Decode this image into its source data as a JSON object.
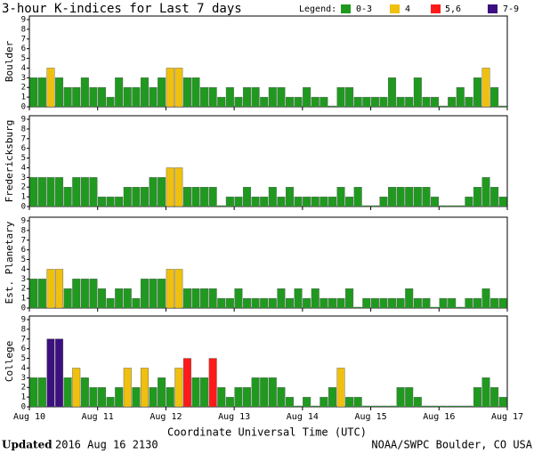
{
  "header": {
    "title": "3-hour K-indices for Last 7 days",
    "legend_title": "Legend:",
    "legend": [
      {
        "label": "0-3",
        "color": "#1f9a1f",
        "levels": [
          0,
          1,
          2,
          3
        ]
      },
      {
        "label": "4",
        "color": "#f0c010",
        "levels": [
          4
        ]
      },
      {
        "label": "5,6",
        "color": "#ff1a1a",
        "levels": [
          5,
          6
        ]
      },
      {
        "label": "7-9",
        "color": "#3c1080",
        "levels": [
          7,
          8,
          9
        ]
      }
    ]
  },
  "x_axis": {
    "label": "Coordinate Universal Time (UTC)",
    "xlim": [
      0,
      56
    ],
    "xticks": [
      {
        "value": 0,
        "label": "Aug 10"
      },
      {
        "value": 8,
        "label": "Aug 11"
      },
      {
        "value": 16,
        "label": "Aug 12"
      },
      {
        "value": 24,
        "label": "Aug 13"
      },
      {
        "value": 32,
        "label": "Aug 14"
      },
      {
        "value": 40,
        "label": "Aug 15"
      },
      {
        "value": 48,
        "label": "Aug 16"
      },
      {
        "value": 56,
        "label": "Aug 17"
      }
    ]
  },
  "chart_data": [
    {
      "type": "bar",
      "ylabel": "Boulder",
      "ylim": [
        0,
        9
      ],
      "yticks": [
        0,
        1,
        2,
        3,
        4,
        5,
        6,
        7,
        8,
        9
      ],
      "values": [
        3,
        3,
        4,
        3,
        2,
        2,
        3,
        2,
        2,
        1,
        3,
        2,
        2,
        3,
        2,
        3,
        4,
        4,
        3,
        3,
        2,
        2,
        1,
        2,
        1,
        2,
        2,
        1,
        2,
        2,
        1,
        1,
        2,
        1,
        1,
        0,
        2,
        2,
        1,
        1,
        1,
        1,
        3,
        1,
        1,
        3,
        1,
        1,
        0,
        1,
        2,
        1,
        3,
        4,
        2,
        0
      ]
    },
    {
      "type": "bar",
      "ylabel": "Fredericksburg",
      "ylim": [
        0,
        9
      ],
      "yticks": [
        0,
        1,
        2,
        3,
        4,
        5,
        6,
        7,
        8,
        9
      ],
      "values": [
        3,
        3,
        3,
        3,
        2,
        3,
        3,
        3,
        1,
        1,
        1,
        2,
        2,
        2,
        3,
        3,
        4,
        4,
        2,
        2,
        2,
        2,
        0,
        1,
        1,
        2,
        1,
        1,
        2,
        1,
        2,
        1,
        1,
        1,
        1,
        1,
        2,
        1,
        2,
        0,
        0,
        1,
        2,
        2,
        2,
        2,
        2,
        1,
        0,
        0,
        0,
        1,
        2,
        3,
        2,
        1
      ]
    },
    {
      "type": "bar",
      "ylabel": "Est. Planetary",
      "ylim": [
        0,
        9
      ],
      "yticks": [
        0,
        1,
        2,
        3,
        4,
        5,
        6,
        7,
        8,
        9
      ],
      "values": [
        3,
        3,
        4,
        4,
        2,
        3,
        3,
        3,
        2,
        1,
        2,
        2,
        1,
        3,
        3,
        3,
        4,
        4,
        2,
        2,
        2,
        2,
        1,
        1,
        2,
        1,
        1,
        1,
        1,
        2,
        1,
        2,
        1,
        2,
        1,
        1,
        1,
        2,
        0,
        1,
        1,
        1,
        1,
        1,
        2,
        1,
        1,
        0,
        1,
        1,
        0,
        1,
        1,
        2,
        1,
        1
      ]
    },
    {
      "type": "bar",
      "ylabel": "College",
      "ylim": [
        0,
        9
      ],
      "yticks": [
        0,
        1,
        2,
        3,
        4,
        5,
        6,
        7,
        8,
        9
      ],
      "values": [
        3,
        3,
        7,
        7,
        3,
        4,
        3,
        2,
        2,
        1,
        2,
        4,
        2,
        4,
        2,
        3,
        2,
        4,
        5,
        3,
        3,
        5,
        2,
        1,
        2,
        2,
        3,
        3,
        3,
        2,
        1,
        0,
        1,
        0,
        1,
        2,
        4,
        1,
        1,
        0,
        0,
        0,
        0,
        2,
        2,
        1,
        0,
        0,
        0,
        0,
        0,
        0,
        2,
        3,
        2,
        1
      ]
    }
  ],
  "footer": {
    "updated_label": "Updated",
    "updated_text": "2016 Aug 16 2130",
    "credit": "NOAA/SWPC Boulder, CO USA"
  }
}
